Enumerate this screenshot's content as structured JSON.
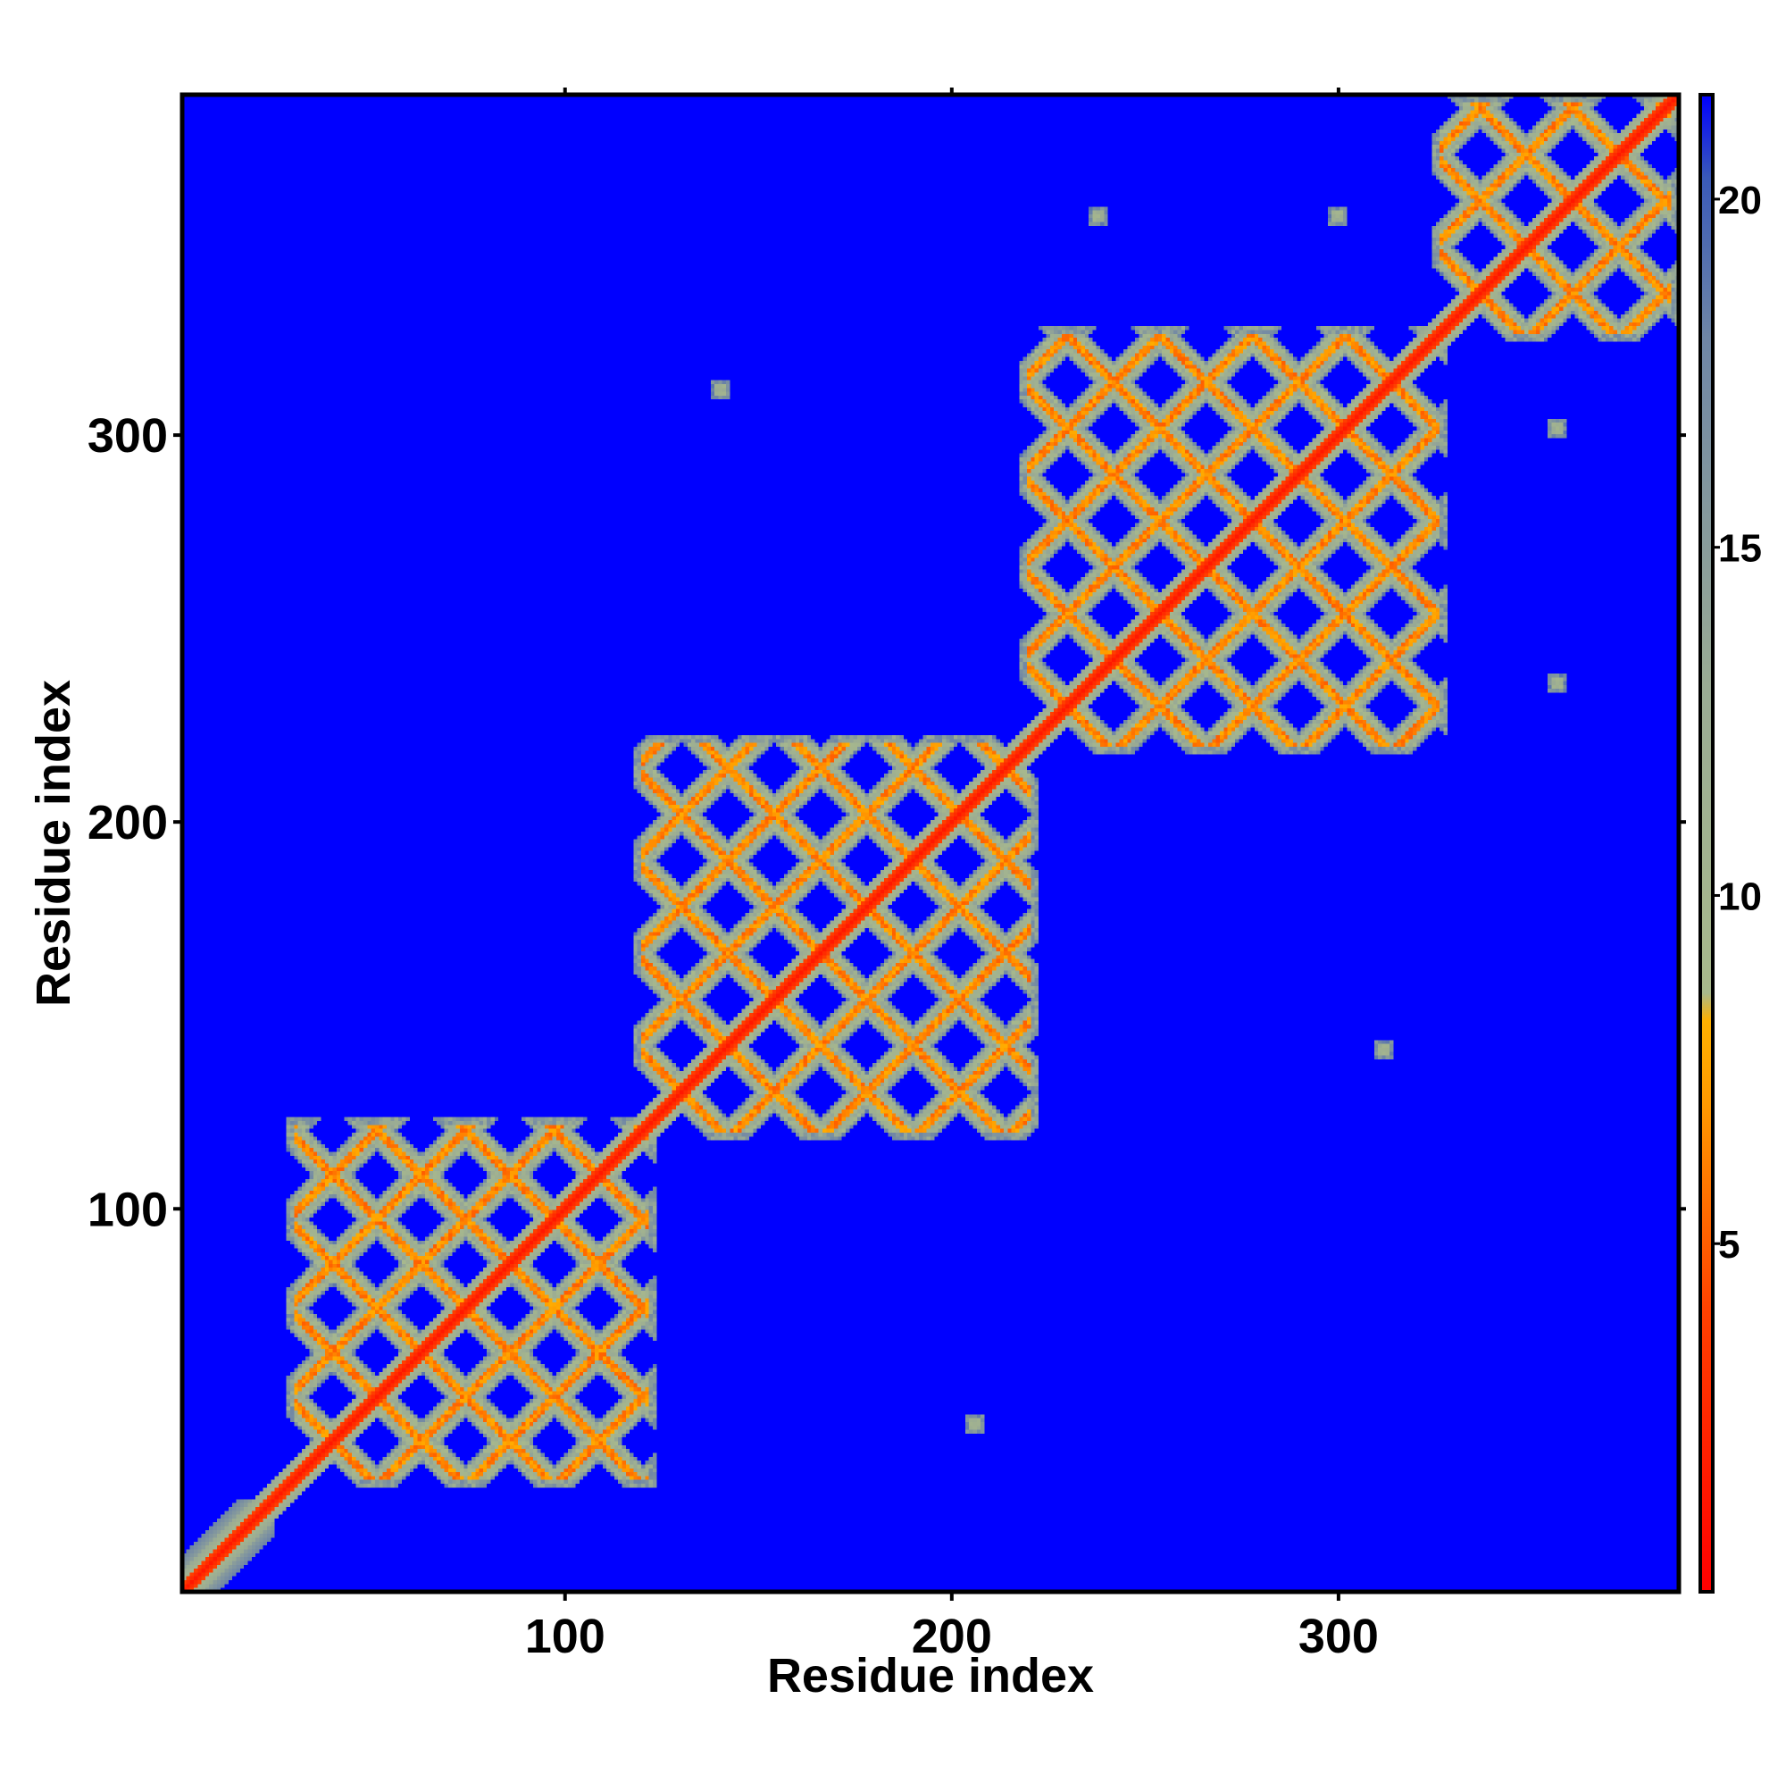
{
  "chart_data": {
    "type": "heatmap",
    "title": "",
    "xlabel": "Residue index",
    "ylabel": "Residue index",
    "xlim": [
      1,
      388
    ],
    "ylim": [
      1,
      388
    ],
    "x_ticks": [
      100,
      200,
      300
    ],
    "y_ticks": [
      100,
      200,
      300
    ],
    "grid": false,
    "colorbar": {
      "range": [
        0,
        21.5
      ],
      "ticks": [
        5,
        10,
        15,
        20
      ],
      "stops": [
        {
          "value": 0,
          "color": "#ff0000"
        },
        {
          "value": 4,
          "color": "#ff4000"
        },
        {
          "value": 7,
          "color": "#ff9900"
        },
        {
          "value": 8.2,
          "color": "#ffb000"
        },
        {
          "value": 8.6,
          "color": "#a8b98c"
        },
        {
          "value": 13,
          "color": "#9aab94"
        },
        {
          "value": 18,
          "color": "#6f86a6"
        },
        {
          "value": 20.3,
          "color": "#3a5ab8"
        },
        {
          "value": 21.5,
          "color": "#0000ff"
        }
      ]
    },
    "background_value": 21.5,
    "diagonal": {
      "value": 1.5,
      "width_residues": 2.5
    },
    "domains": [
      {
        "start": 28,
        "end": 123,
        "step": 23
      },
      {
        "start": 118,
        "end": 222,
        "step": 24
      },
      {
        "start": 218,
        "end": 328,
        "step": 24
      },
      {
        "start": 325,
        "end": 388,
        "step": 24
      }
    ],
    "isolated_contacts": [
      {
        "x": 140,
        "y": 312
      },
      {
        "x": 238,
        "y": 357
      },
      {
        "x": 300,
        "y": 357
      },
      {
        "x": 357,
        "y": 302
      },
      {
        "x": 357,
        "y": 236
      },
      {
        "x": 312,
        "y": 141
      },
      {
        "x": 206,
        "y": 44
      }
    ]
  }
}
